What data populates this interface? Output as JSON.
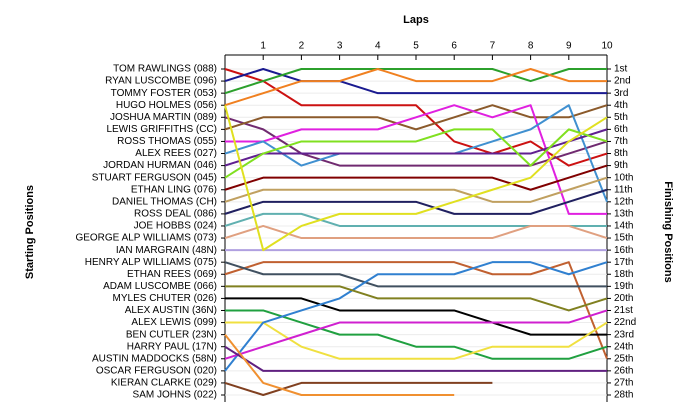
{
  "chart_data": {
    "type": "line",
    "title": "Laps",
    "ylabel": "Starting Positions",
    "y2label": "Finishing Positions",
    "x": [
      0,
      1,
      2,
      3,
      4,
      5,
      6,
      7,
      8,
      9,
      10
    ],
    "xlim": [
      0,
      10
    ],
    "xticks": [
      1,
      2,
      3,
      4,
      5,
      6,
      7,
      8,
      9,
      10
    ],
    "ylim": [
      1,
      28
    ],
    "y_inverted": true,
    "grid": true,
    "y2ticks": [
      {
        "value": 1,
        "label": "1st"
      },
      {
        "value": 2,
        "label": "2nd"
      },
      {
        "value": 3,
        "label": "3rd"
      },
      {
        "value": 4,
        "label": "4th"
      },
      {
        "value": 5,
        "label": "5th"
      },
      {
        "value": 6,
        "label": "6th"
      },
      {
        "value": 7,
        "label": "7th"
      },
      {
        "value": 8,
        "label": "8th"
      },
      {
        "value": 9,
        "label": "9th"
      },
      {
        "value": 10,
        "label": "10th"
      },
      {
        "value": 11,
        "label": "11th"
      },
      {
        "value": 12,
        "label": "12th"
      },
      {
        "value": 13,
        "label": "13th"
      },
      {
        "value": 14,
        "label": "14th"
      },
      {
        "value": 15,
        "label": "15th"
      },
      {
        "value": 16,
        "label": "16th"
      },
      {
        "value": 17,
        "label": "17th"
      },
      {
        "value": 18,
        "label": "18th"
      },
      {
        "value": 19,
        "label": "19th"
      },
      {
        "value": 20,
        "label": "20th"
      },
      {
        "value": 21,
        "label": "21st"
      },
      {
        "value": 22,
        "label": "22nd"
      },
      {
        "value": 23,
        "label": "23rd"
      },
      {
        "value": 24,
        "label": "24th"
      },
      {
        "value": 25,
        "label": "25th"
      },
      {
        "value": 26,
        "label": "26th"
      },
      {
        "value": 27,
        "label": "27th"
      },
      {
        "value": 28,
        "label": "28th"
      }
    ],
    "series": [
      {
        "name": "TOM RAWLINGS (088)",
        "color": "#cc1111",
        "values": [
          1,
          2,
          4,
          4,
          4,
          4,
          7,
          8,
          7,
          9,
          8
        ]
      },
      {
        "name": "RYAN LUSCOMBE (096)",
        "color": "#1a1a90",
        "values": [
          2,
          1,
          2,
          2,
          3,
          3,
          3,
          3,
          3,
          3,
          3
        ]
      },
      {
        "name": "TOMMY FOSTER (053)",
        "color": "#2ca02c",
        "values": [
          3,
          2,
          1,
          1,
          1,
          1,
          1,
          1,
          2,
          1,
          1
        ]
      },
      {
        "name": "HUGO HOLMES (056)",
        "color": "#f08020",
        "values": [
          4,
          3,
          2,
          2,
          1,
          2,
          2,
          2,
          1,
          2,
          2
        ]
      },
      {
        "name": "JOSHUA MARTIN (089)",
        "color": "#702a70",
        "values": [
          5,
          6,
          8,
          9,
          9,
          9,
          9,
          9,
          9,
          8,
          7
        ]
      },
      {
        "name": "LEWIS GRIFFITHS (CC)",
        "color": "#8b5a2b",
        "values": [
          6,
          5,
          5,
          5,
          5,
          6,
          5,
          4,
          5,
          5,
          4
        ]
      },
      {
        "name": "ROSS THOMAS (055)",
        "color": "#e020e0",
        "values": [
          7,
          7,
          6,
          6,
          6,
          5,
          4,
          5,
          4,
          13,
          13
        ]
      },
      {
        "name": "ALEX REES (027)",
        "color": "#4090d0",
        "values": [
          8,
          7,
          9,
          8,
          8,
          8,
          8,
          7,
          6,
          4,
          12
        ]
      },
      {
        "name": "JORDAN HURMAN (046)",
        "color": "#602090",
        "values": [
          9,
          8,
          8,
          8,
          8,
          8,
          8,
          8,
          8,
          7,
          6
        ]
      },
      {
        "name": "STUART FERGUSON (045)",
        "color": "#80e020",
        "values": [
          10,
          8,
          7,
          7,
          7,
          7,
          6,
          6,
          9,
          6,
          7
        ]
      },
      {
        "name": "ETHAN LING (076)",
        "color": "#800000",
        "values": [
          11,
          10,
          10,
          10,
          10,
          10,
          10,
          10,
          11,
          10,
          9
        ]
      },
      {
        "name": "DANIEL THOMAS (CH)",
        "color": "#c0a060",
        "values": [
          12,
          11,
          11,
          11,
          11,
          11,
          11,
          12,
          12,
          11,
          10
        ]
      },
      {
        "name": "ROSS DEAL (086)",
        "color": "#202060",
        "values": [
          13,
          12,
          12,
          12,
          12,
          12,
          13,
          13,
          13,
          12,
          11
        ]
      },
      {
        "name": "JOE HOBBS (024)",
        "color": "#60b0b0",
        "values": [
          14,
          13,
          13,
          14,
          14,
          14,
          14,
          14,
          14,
          14,
          14
        ]
      },
      {
        "name": "GEORGE ALP WILLIAMS (073)",
        "color": "#e0a080",
        "values": [
          15,
          14,
          15,
          15,
          15,
          15,
          15,
          15,
          14,
          14,
          15
        ]
      },
      {
        "name": "IAN MARGRAIN (48N)",
        "color": "#b0a0e0",
        "values": [
          16,
          16,
          16,
          16,
          16,
          16,
          16,
          16,
          16,
          16,
          16
        ]
      },
      {
        "name": "HENRY ALP WILLIAMS (075)",
        "color": "#e0e020",
        "values": [
          4,
          16,
          14,
          13,
          13,
          13,
          12,
          11,
          10,
          7,
          5
        ]
      },
      {
        "name": "ETHAN REES (069)",
        "color": "#c06030",
        "values": [
          18,
          17,
          17,
          17,
          17,
          17,
          17,
          18,
          18,
          17,
          25
        ]
      },
      {
        "name": "ADAM LUSCOMBE (066)",
        "color": "#405060",
        "values": [
          17,
          18,
          18,
          18,
          19,
          19,
          19,
          19,
          19,
          19,
          19
        ]
      },
      {
        "name": "MYLES CHUTER (026)",
        "color": "#000000",
        "values": [
          20,
          20,
          20,
          21,
          21,
          21,
          21,
          22,
          23,
          23,
          23
        ]
      },
      {
        "name": "ALEX AUSTIN (36N)",
        "color": "#20a040",
        "values": [
          21,
          21,
          22,
          23,
          23,
          24,
          24,
          25,
          25,
          25,
          24
        ]
      },
      {
        "name": "ALEX LEWIS (099)",
        "color": "#f0e040",
        "values": [
          22,
          22,
          24,
          25,
          25,
          25,
          25,
          24,
          24,
          24,
          22
        ]
      },
      {
        "name": "BEN CUTLER (23N)",
        "color": "#3080d0",
        "values": [
          26,
          22,
          21,
          20,
          18,
          18,
          18,
          17,
          17,
          18,
          17
        ]
      },
      {
        "name": "HARRY PAUL (17N)",
        "color": "#808020",
        "values": [
          19,
          19,
          19,
          19,
          20,
          20,
          20,
          20,
          20,
          21,
          20
        ]
      },
      {
        "name": "AUSTIN MADDOCKS (58N)",
        "color": "#d020d0",
        "values": [
          25,
          24,
          23,
          22,
          22,
          22,
          22,
          22,
          22,
          22,
          21
        ]
      },
      {
        "name": "OSCAR FERGUSON (020)",
        "color": "#602080",
        "values": [
          24,
          26,
          26,
          26,
          26,
          26,
          26,
          26,
          26,
          26,
          26
        ]
      },
      {
        "name": "KIERAN CLARKE (029)",
        "color": "#804020",
        "values": [
          27,
          28,
          27,
          27,
          27,
          27,
          27,
          27,
          null,
          null,
          null
        ]
      },
      {
        "name": "SAM JOHNS (022)",
        "color": "#f09030",
        "values": [
          23,
          27,
          28,
          28,
          28,
          28,
          28,
          null,
          null,
          null,
          null
        ]
      }
    ]
  }
}
